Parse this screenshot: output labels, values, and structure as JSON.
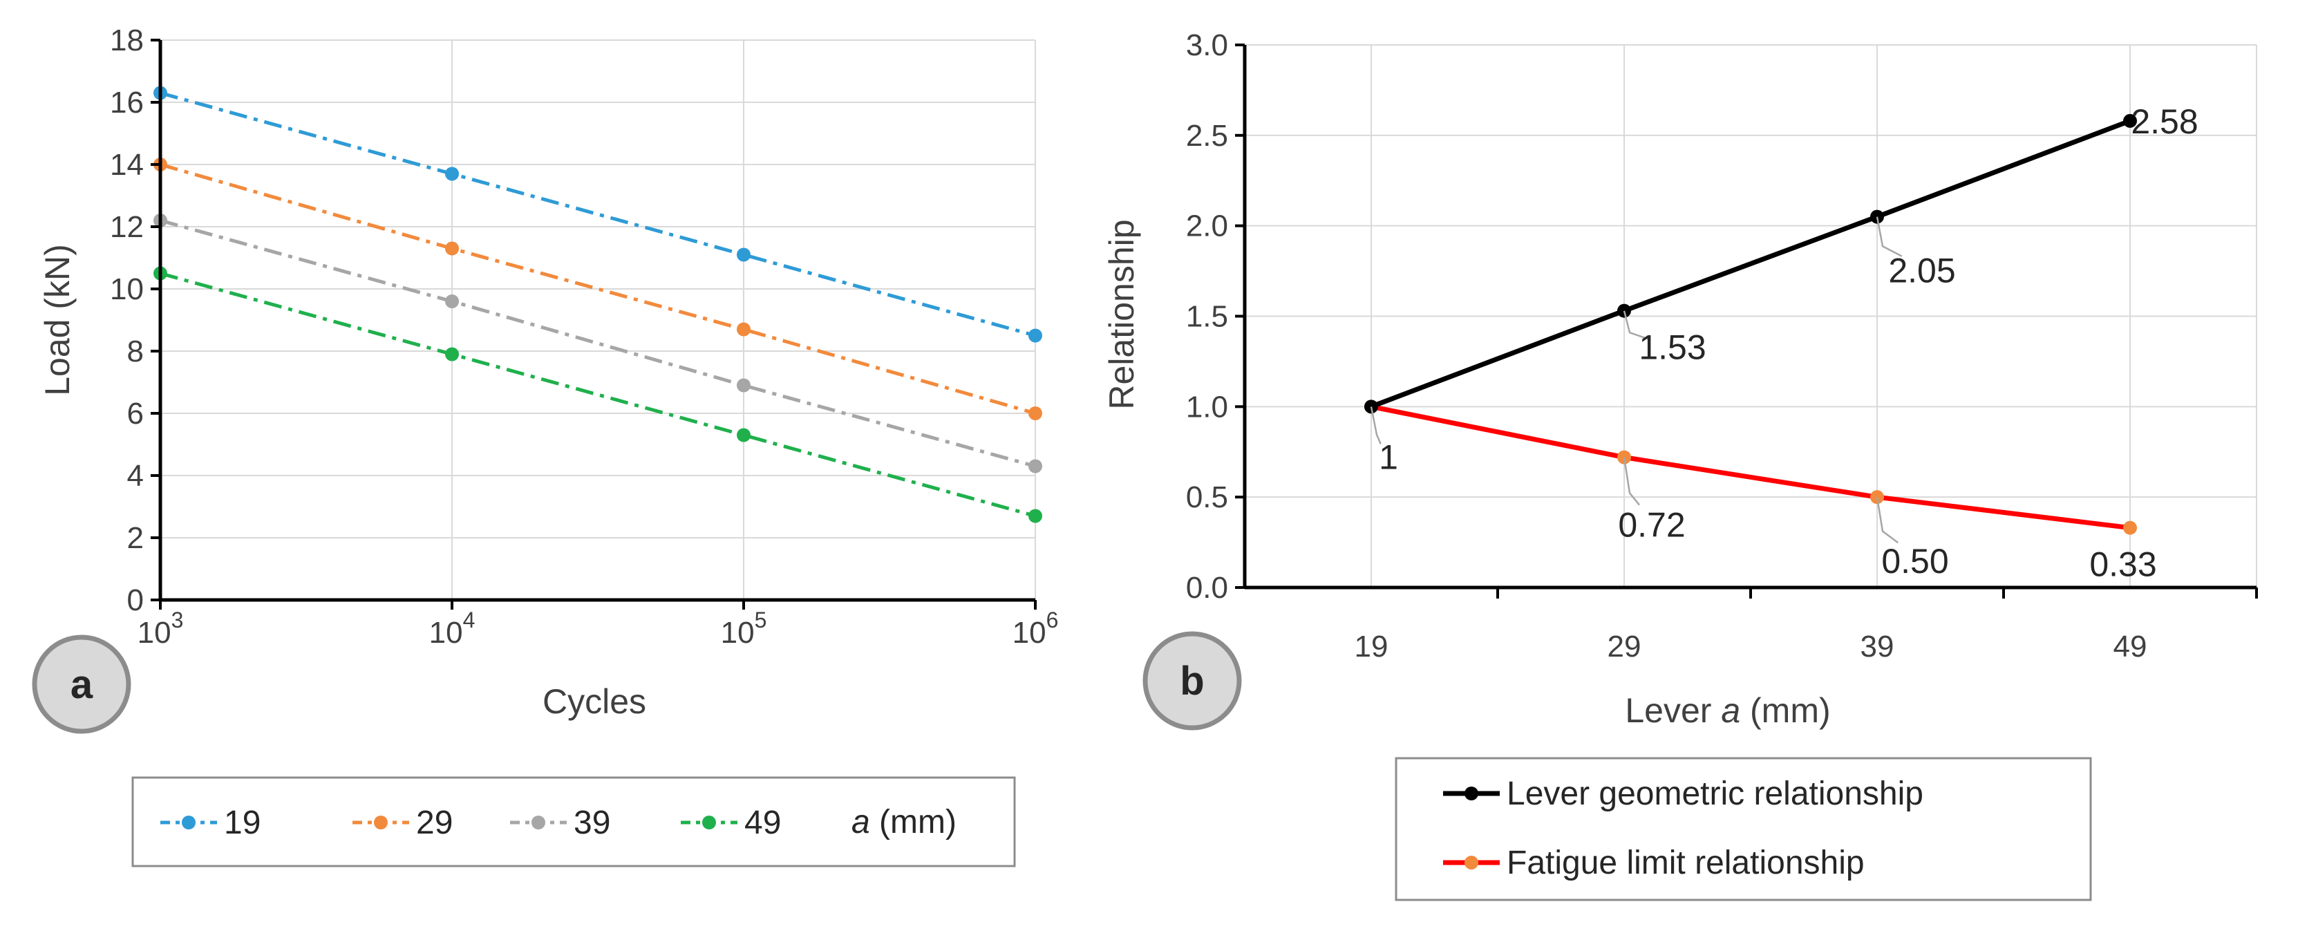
{
  "chart_data": [
    {
      "id": "a",
      "panel_label": "a",
      "type": "line",
      "x_scale": "log",
      "xlabel": "Cycles",
      "ylabel": "Load (kN)",
      "ylim": [
        0,
        18
      ],
      "yticks": [
        "0",
        "2",
        "4",
        "6",
        "8",
        "10",
        "12",
        "14",
        "16",
        "18"
      ],
      "xticks": [
        {
          "value": 1000,
          "base": "10",
          "exp": "3"
        },
        {
          "value": 10000,
          "base": "10",
          "exp": "4"
        },
        {
          "value": 100000,
          "base": "10",
          "exp": "5"
        },
        {
          "value": 1000000,
          "base": "10",
          "exp": "6"
        }
      ],
      "x": [
        1000,
        10000,
        100000,
        1000000
      ],
      "series": [
        {
          "name": "19",
          "color": "#2E9BD6",
          "values": [
            16.3,
            13.7,
            11.1,
            8.5
          ]
        },
        {
          "name": "29",
          "color": "#F28A3C",
          "values": [
            14.0,
            11.3,
            8.7,
            6.0
          ]
        },
        {
          "name": "39",
          "color": "#A6A6A6",
          "values": [
            12.2,
            9.6,
            6.9,
            4.3
          ]
        },
        {
          "name": "49",
          "color": "#1FB04C",
          "values": [
            10.5,
            7.9,
            5.3,
            2.7
          ]
        }
      ],
      "legend_title_italic": "a",
      "legend_title_rest": " (mm)"
    },
    {
      "id": "b",
      "panel_label": "b",
      "type": "line",
      "xlabel_prefix": "Lever ",
      "xlabel_italic": "a",
      "xlabel_suffix": " (mm)",
      "ylabel": "Relationship",
      "ylim": [
        0,
        3.0
      ],
      "xlim": [
        14,
        54
      ],
      "yticks": [
        "0.0",
        "0.5",
        "1.0",
        "1.5",
        "2.0",
        "2.5",
        "3.0"
      ],
      "xticks": [
        "19",
        "29",
        "39",
        "49"
      ],
      "x": [
        19,
        29,
        39,
        49
      ],
      "series": [
        {
          "name": "Lever geometric relationship",
          "color": "#000000",
          "values": [
            1.0,
            1.53,
            2.05,
            2.58
          ],
          "labels": [
            "",
            "1.53",
            "2.05",
            "2.58"
          ]
        },
        {
          "name": "Fatigue limit relationship",
          "color": "#FF0000",
          "marker_color": "#F28A3C",
          "values": [
            1.0,
            0.72,
            0.5,
            0.33
          ],
          "labels": [
            "1",
            "0.72",
            "0.50",
            "0.33"
          ]
        }
      ]
    }
  ]
}
